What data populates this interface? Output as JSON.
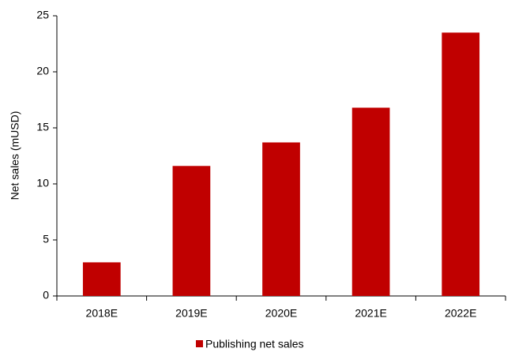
{
  "chart_data": {
    "type": "bar",
    "y_label": "Net sales (mUSD)",
    "categories": [
      "2018E",
      "2019E",
      "2020E",
      "2021E",
      "2022E"
    ],
    "series": [
      {
        "name": "Publishing net sales",
        "color": "#c00000",
        "values": [
          3.0,
          11.6,
          13.7,
          16.8,
          23.5
        ]
      }
    ],
    "ylim": [
      0,
      25
    ],
    "yticks": [
      0,
      5,
      10,
      15,
      20,
      25
    ],
    "grid": false,
    "legend": "bottom"
  }
}
